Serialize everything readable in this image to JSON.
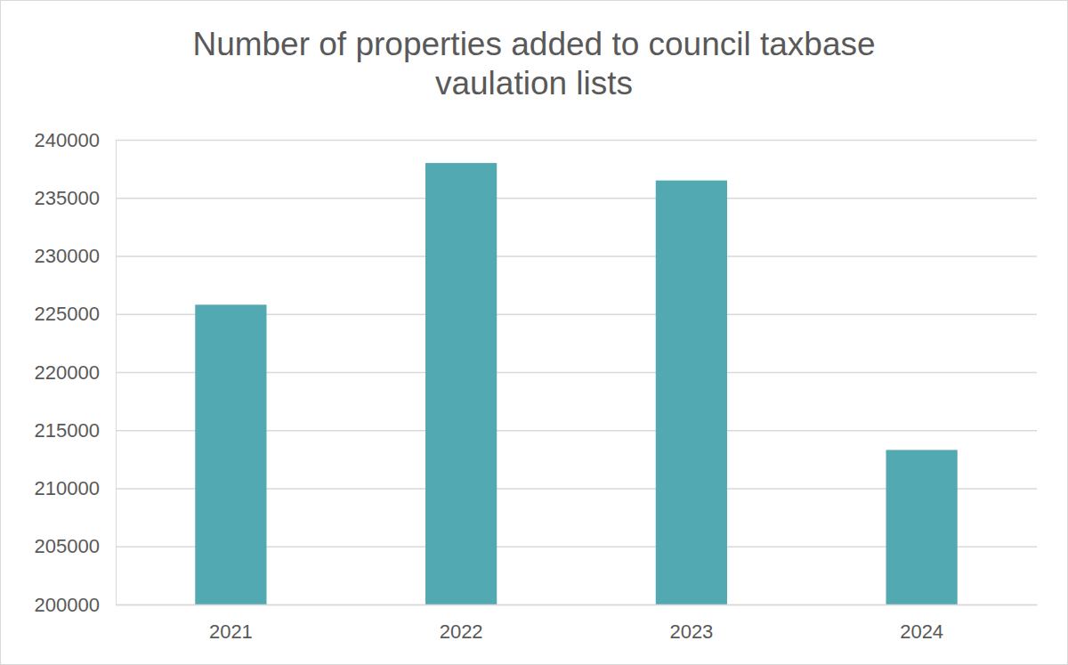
{
  "chart_data": {
    "type": "bar",
    "title": "Number of properties added to council taxbase vaulation lists",
    "categories": [
      "2021",
      "2022",
      "2023",
      "2024"
    ],
    "values": [
      225800,
      238000,
      236500,
      213300
    ],
    "color": "#53a9b1",
    "ylim": [
      200000,
      240000
    ],
    "yticks": [
      200000,
      205000,
      210000,
      215000,
      220000,
      225000,
      230000,
      235000,
      240000
    ],
    "grid": true
  }
}
